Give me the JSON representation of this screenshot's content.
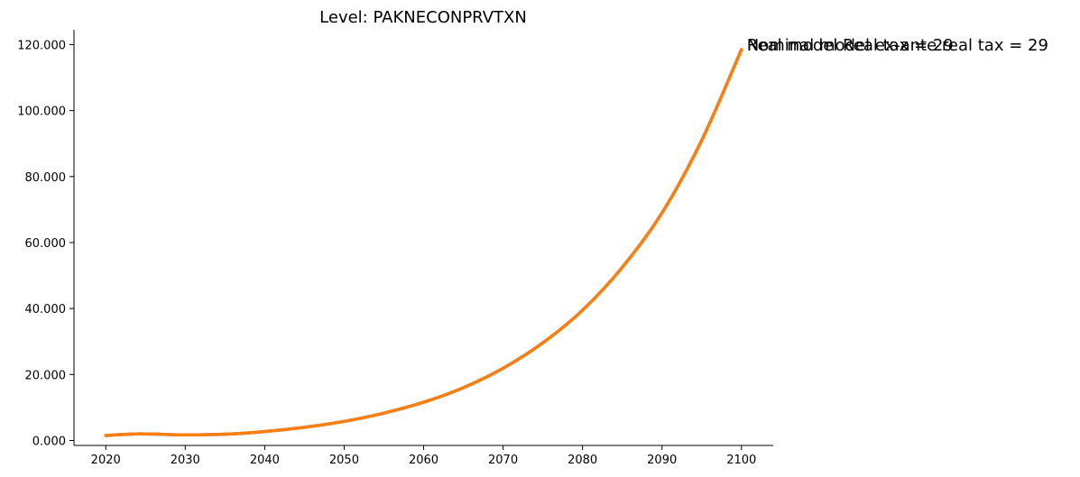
{
  "chart_data": {
    "type": "line",
    "title": "Level: PAKNECONPRVTXN",
    "xlabel": "",
    "ylabel": "",
    "xlim": [
      2016,
      2104
    ],
    "ylim": [
      -1.5,
      124.5
    ],
    "x_ticks": [
      2020,
      2030,
      2040,
      2050,
      2060,
      2070,
      2080,
      2090,
      2100
    ],
    "y_ticks": [
      0,
      20,
      40,
      60,
      80,
      100,
      120
    ],
    "y_tick_labels": [
      "0.000",
      "20.000",
      "40.000",
      "60.000",
      "80.000",
      "100.000",
      "120.000"
    ],
    "grid": false,
    "x": [
      2020,
      2024,
      2030,
      2035,
      2040,
      2045,
      2050,
      2055,
      2060,
      2065,
      2070,
      2075,
      2080,
      2085,
      2090,
      2095,
      2100
    ],
    "series": [
      {
        "name": "Real model Real tax = 29",
        "color": "#1f77b4",
        "values": [
          1.5,
          2.0,
          1.7,
          1.9,
          2.7,
          4.0,
          5.8,
          8.3,
          11.6,
          16.0,
          21.9,
          29.6,
          39.5,
          52.5,
          69.0,
          91.0,
          118.5
        ]
      },
      {
        "name": "Nominal model ex-ante real tax = 29",
        "color": "#ff7f0e",
        "values": [
          1.5,
          2.0,
          1.7,
          1.9,
          2.7,
          4.0,
          5.8,
          8.3,
          11.6,
          16.0,
          21.9,
          29.6,
          39.5,
          52.5,
          69.0,
          91.0,
          118.5
        ]
      }
    ]
  }
}
